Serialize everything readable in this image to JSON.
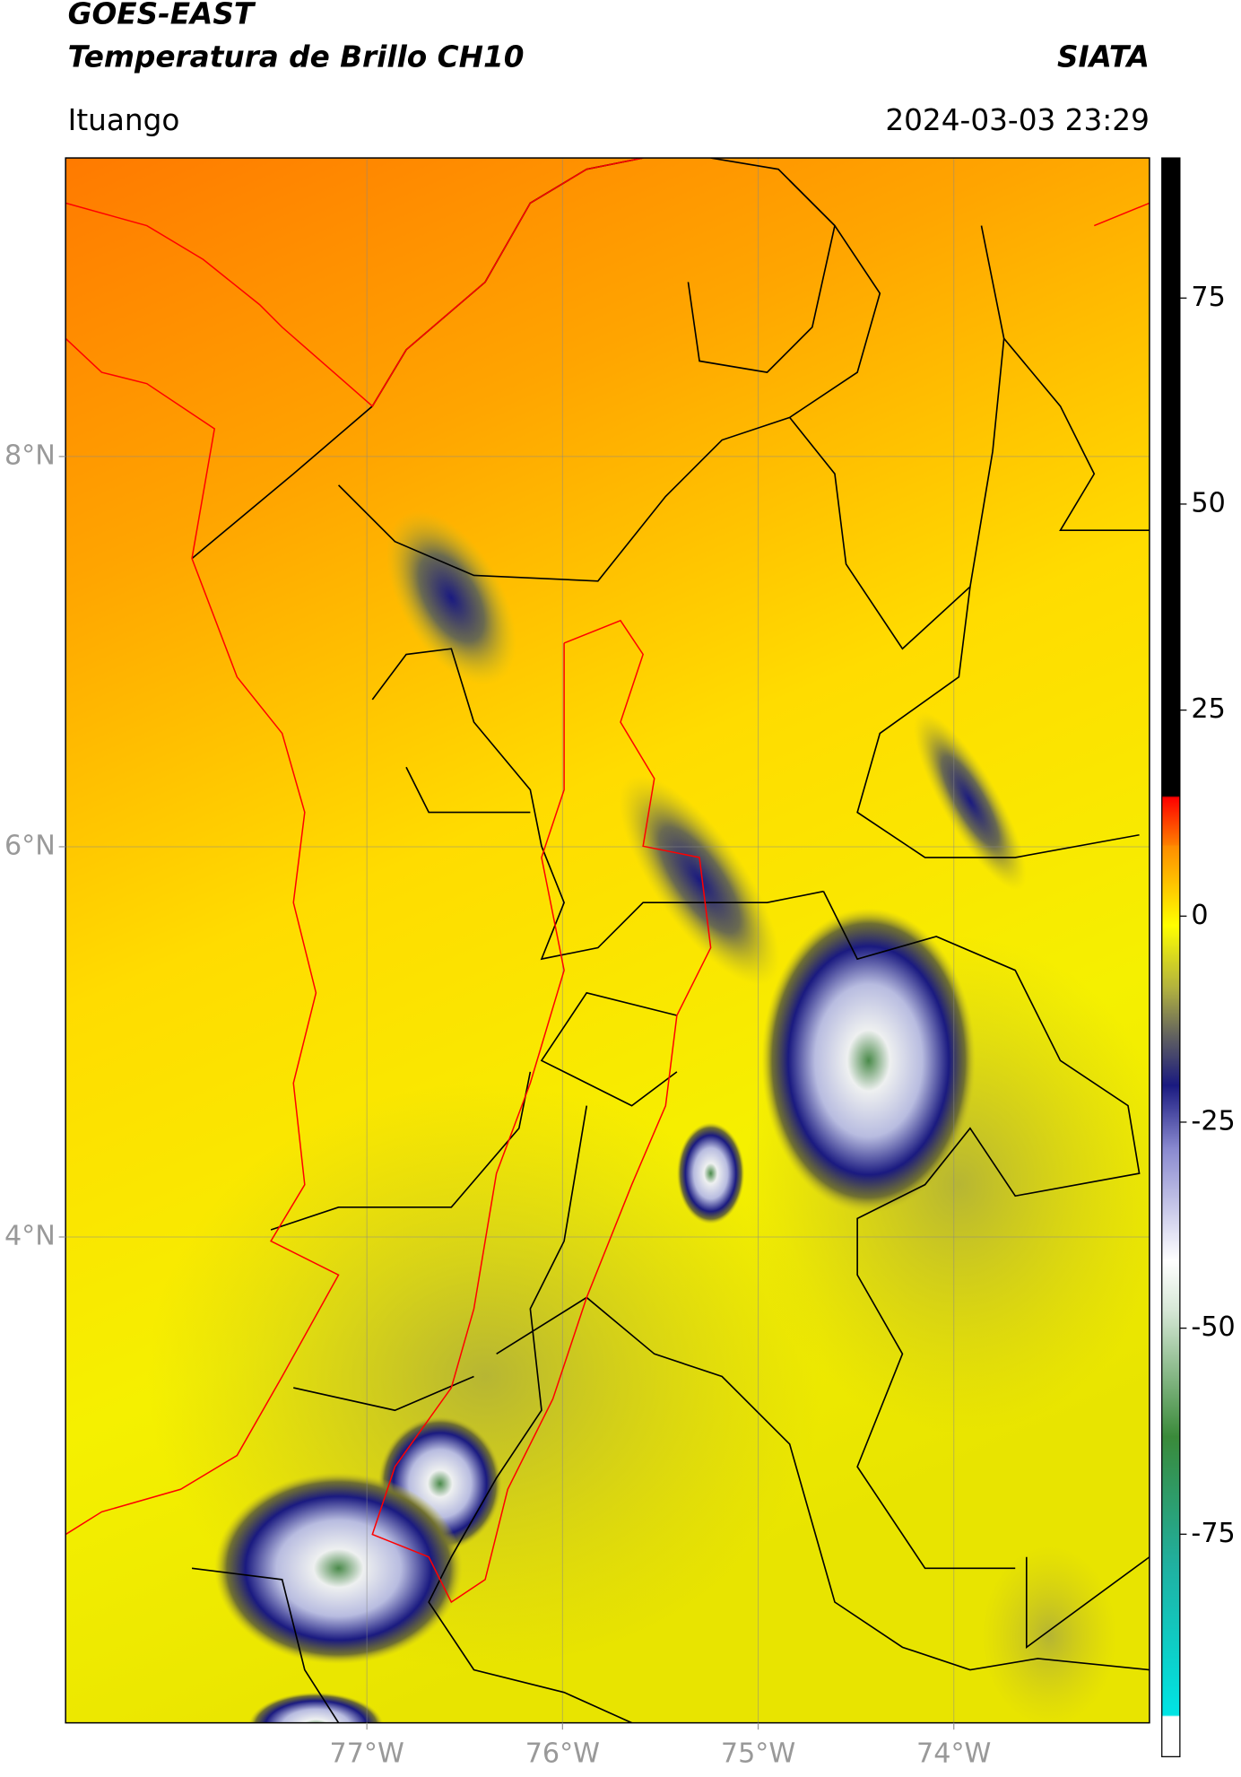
{
  "header": {
    "title": "GOES-EAST",
    "subtitle": "Temperatura de Brillo CH10",
    "source": "SIATA",
    "location": "Ituango",
    "timestamp": "2024-03-03 23:29"
  },
  "map": {
    "xlim": [
      -78.54,
      -73.0
    ],
    "ylim": [
      1.51,
      9.53
    ],
    "xticks": [
      {
        "value": -77,
        "label": "77°W"
      },
      {
        "value": -76,
        "label": "76°W"
      },
      {
        "value": -75,
        "label": "75°W"
      },
      {
        "value": -74,
        "label": "74°W"
      }
    ],
    "yticks": [
      {
        "value": 8,
        "label": "8°N"
      },
      {
        "value": 6,
        "label": "6°N"
      },
      {
        "value": 4,
        "label": "4°N"
      }
    ],
    "grid": true
  },
  "colorbar": {
    "lim": [
      -102,
      92
    ],
    "ticks": [
      75,
      50,
      25,
      0,
      -25,
      -50,
      -75
    ]
  }
}
